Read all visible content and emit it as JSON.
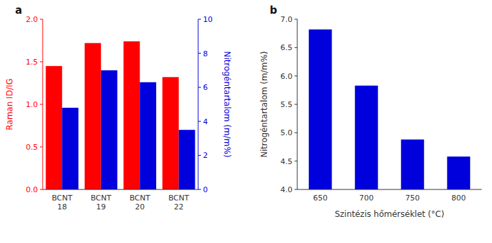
{
  "chart_data": [
    {
      "type": "bar",
      "title": "a",
      "categories": [
        "BCNT\n18",
        "BCNT\n19",
        "BCNT\n20",
        "BCNT\n22"
      ],
      "series": [
        {
          "color": "#ff0000",
          "values": [
            1.45,
            1.72,
            1.74,
            1.32
          ]
        },
        {
          "color": "#0000dd",
          "values": [
            4.8,
            7.0,
            6.3,
            3.5
          ],
          "axis": "y2"
        }
      ],
      "ylabel": "Raman ID/IG",
      "y2label": "Nitrogéntartalom (m/m%)",
      "ylim": [
        0.0,
        2.0
      ],
      "yticks": [
        {
          "value": 0.0,
          "label": "0.0"
        },
        0.5,
        {
          "value": 1.0,
          "label": "1.0"
        },
        1.5,
        {
          "value": 2.0,
          "label": "2.0"
        }
      ],
      "y2lim": [
        0,
        10
      ],
      "y2ticks": [
        0,
        2,
        4,
        6,
        8,
        10
      ],
      "grid": false
    },
    {
      "type": "bar",
      "title": "b",
      "categories": [
        "650",
        "700",
        "750",
        "800"
      ],
      "values": [
        6.82,
        5.83,
        4.88,
        4.58
      ],
      "color": "#0000dd",
      "ylabel": "Nitrogéntartalom (m/m%)",
      "xlabel": "Szintézis hőmérséklet (°C)",
      "ylim": [
        4.0,
        7.0
      ],
      "yticks": [
        {
          "value": 4.0,
          "label": "4.0"
        },
        4.5,
        {
          "value": 5.0,
          "label": "5.0"
        },
        5.5,
        {
          "value": 6.0,
          "label": "6.0"
        },
        6.5,
        {
          "value": 7.0,
          "label": "7.0"
        }
      ],
      "grid": false
    }
  ]
}
